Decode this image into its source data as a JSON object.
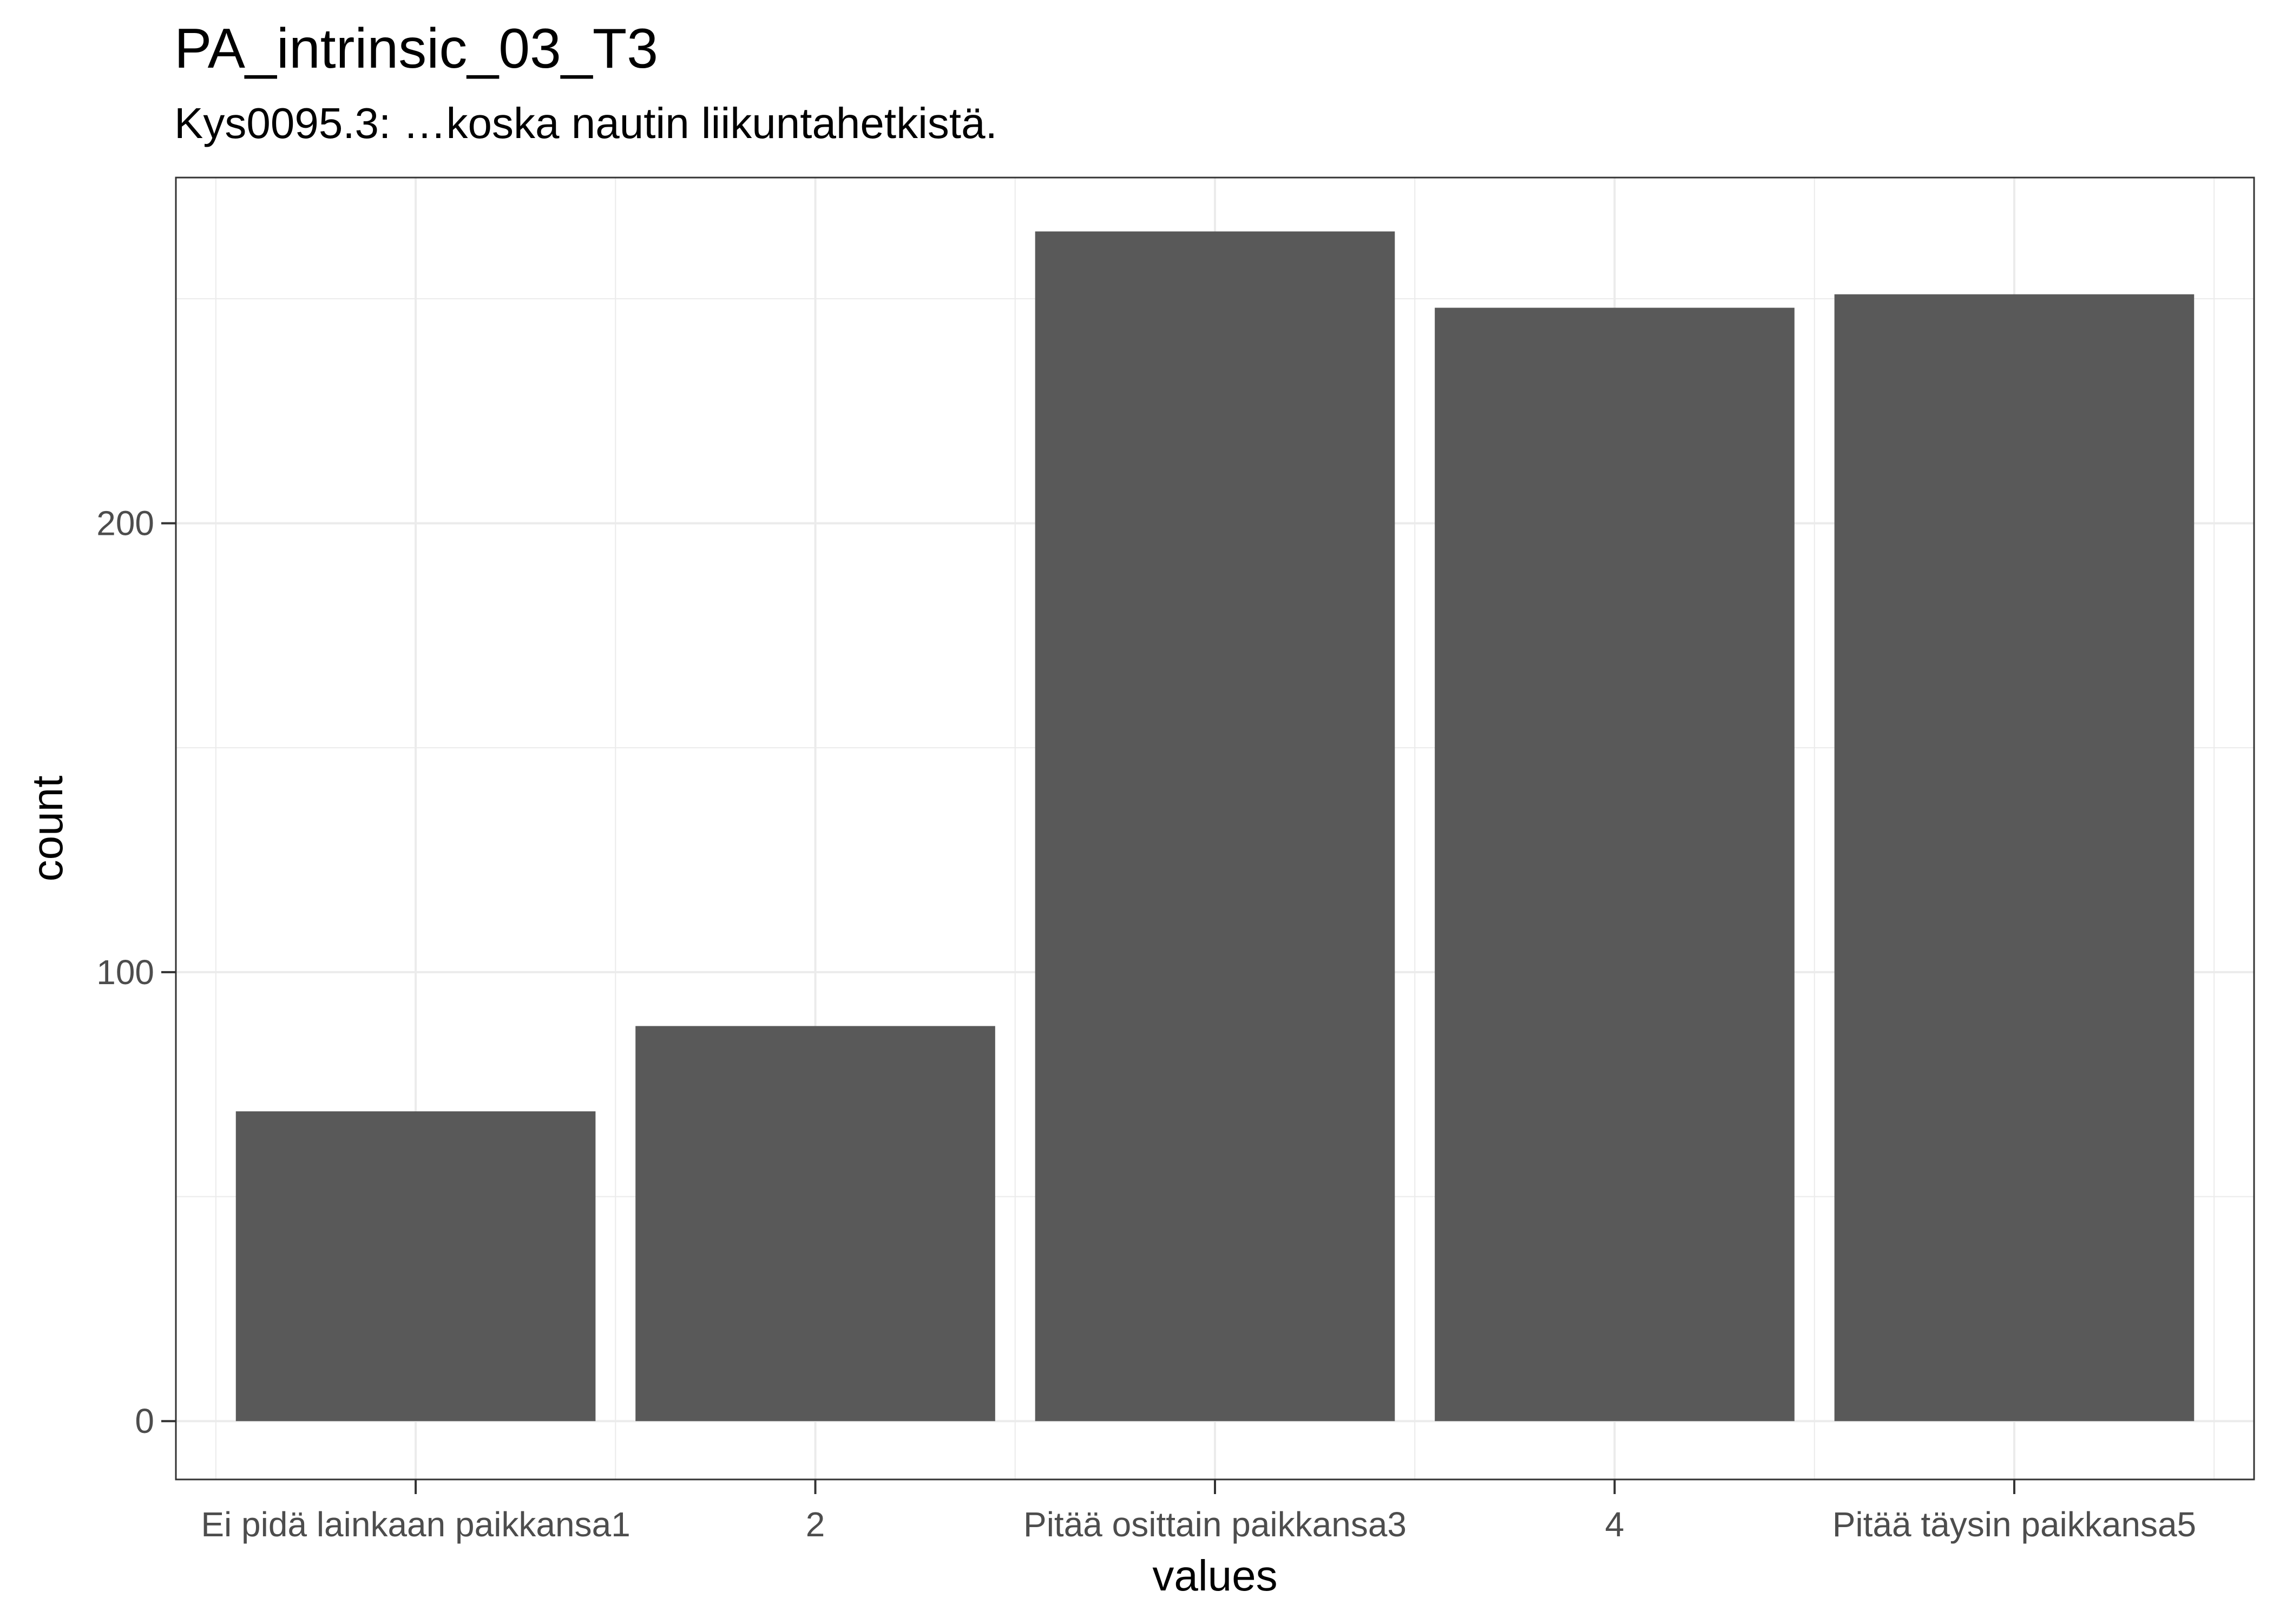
{
  "chart_data": {
    "type": "bar",
    "title": "PA_intrinsic_03_T3",
    "subtitle": "Kys0095.3: …koska nautin liikuntahetkistä.",
    "xlabel": "values",
    "ylabel": "count",
    "categories": [
      "Ei pidä lainkaan paikkansa1",
      "2",
      "Pitää osittain paikkansa3",
      "4",
      "Pitää täysin paikkansa5"
    ],
    "values": [
      69,
      88,
      265,
      248,
      251
    ],
    "ylim": [
      -13,
      277
    ],
    "yticks": [
      0,
      100,
      200
    ],
    "ytick_labels": [
      "0",
      "100",
      "200"
    ],
    "grid": true,
    "bar_color": "#595959",
    "grid_color": "#ebebeb",
    "panel_border_color": "#333333"
  }
}
